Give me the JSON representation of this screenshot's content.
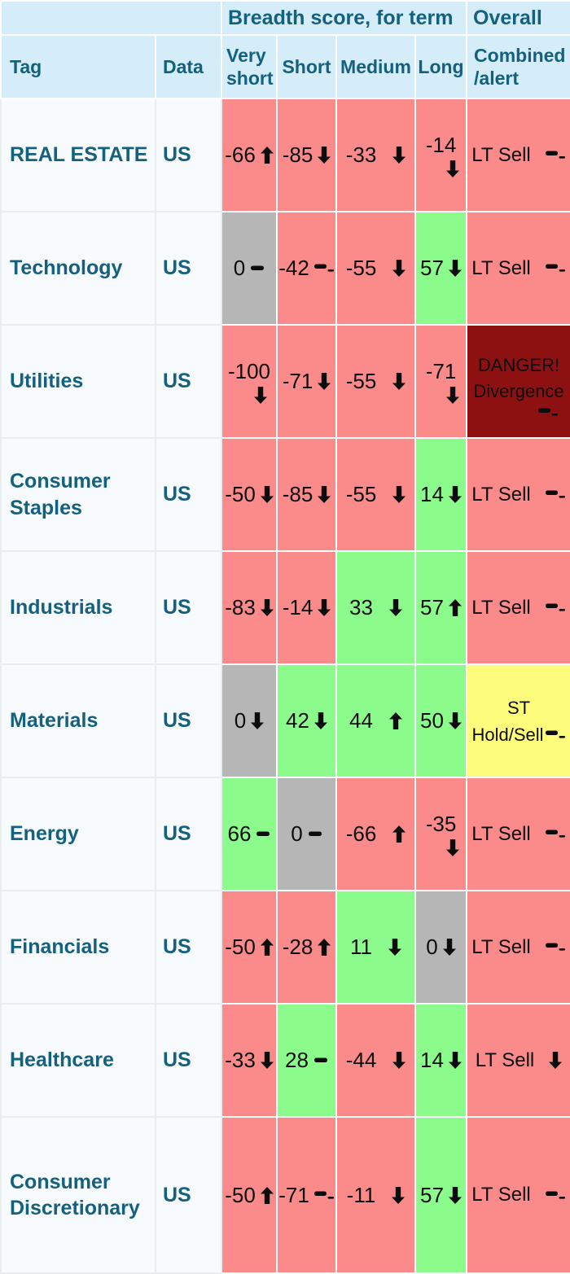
{
  "header": {
    "group_breadth": "Breadth score, for term",
    "group_overall": "Overall",
    "columns": [
      "Tag",
      "Data",
      "Very short",
      "Short",
      "Medium",
      "Long",
      "Combined /alert"
    ]
  },
  "colors": {
    "red": "#fb8a8a",
    "green": "#8bfb8b",
    "gray": "#b6b6b6",
    "dark_red": "#8e1111",
    "yellow": "#fdfd7b",
    "header_bg": "#d5edf8",
    "label_bg": "#f8fbfe",
    "teal_text": "#14607f",
    "number_text": "#0c0c0c"
  },
  "icons": {
    "up": "arrow-up-icon",
    "down": "arrow-down-icon",
    "flat": "dash-icon",
    "flat_minus": "dash-minus-icon"
  },
  "rows": [
    {
      "tag": "REAL ESTATE",
      "data": "US",
      "scores": [
        {
          "value": "-66",
          "trend": "up",
          "color": "red"
        },
        {
          "value": "-85",
          "trend": "down",
          "color": "red"
        },
        {
          "value": "-33",
          "trend": "down",
          "color": "red"
        },
        {
          "value": "-14",
          "trend": "down",
          "color": "red",
          "stack": true
        }
      ],
      "overall": {
        "variant": "lt",
        "lines": [
          "LT Sell"
        ],
        "trend": "flat_minus",
        "color": "red"
      }
    },
    {
      "tag": "Technology",
      "data": "US",
      "scores": [
        {
          "value": "0",
          "trend": "flat",
          "color": "gray"
        },
        {
          "value": "-42",
          "trend": "flat_minus",
          "color": "red"
        },
        {
          "value": "-55",
          "trend": "down",
          "color": "red"
        },
        {
          "value": "57",
          "trend": "down",
          "color": "green"
        }
      ],
      "overall": {
        "variant": "lt",
        "lines": [
          "LT Sell"
        ],
        "trend": "flat_minus",
        "color": "red"
      }
    },
    {
      "tag": "Utilities",
      "data": "US",
      "scores": [
        {
          "value": "-100",
          "trend": "down",
          "color": "red",
          "stack": true
        },
        {
          "value": "-71",
          "trend": "down",
          "color": "red"
        },
        {
          "value": "-55",
          "trend": "down",
          "color": "red"
        },
        {
          "value": "-71",
          "trend": "down",
          "color": "red",
          "stack": true
        }
      ],
      "overall": {
        "variant": "danger",
        "lines": [
          "DANGER!",
          "Divergence"
        ],
        "trend": "flat_minus",
        "color": "dark_red"
      }
    },
    {
      "tag": "Consumer Staples",
      "data": "US",
      "scores": [
        {
          "value": "-50",
          "trend": "down",
          "color": "red"
        },
        {
          "value": "-85",
          "trend": "down",
          "color": "red"
        },
        {
          "value": "-55",
          "trend": "down",
          "color": "red"
        },
        {
          "value": "14",
          "trend": "down",
          "color": "green"
        }
      ],
      "overall": {
        "variant": "lt",
        "lines": [
          "LT Sell"
        ],
        "trend": "flat_minus",
        "color": "red"
      }
    },
    {
      "tag": "Industrials",
      "data": "US",
      "scores": [
        {
          "value": "-83",
          "trend": "down",
          "color": "red"
        },
        {
          "value": "-14",
          "trend": "down",
          "color": "red"
        },
        {
          "value": "33",
          "trend": "down",
          "color": "green"
        },
        {
          "value": "57",
          "trend": "up",
          "color": "green"
        }
      ],
      "overall": {
        "variant": "lt",
        "lines": [
          "LT Sell"
        ],
        "trend": "flat_minus",
        "color": "red"
      }
    },
    {
      "tag": "Materials",
      "data": "US",
      "scores": [
        {
          "value": "0",
          "trend": "down",
          "color": "gray"
        },
        {
          "value": "42",
          "trend": "down",
          "color": "green"
        },
        {
          "value": "44",
          "trend": "up",
          "color": "green"
        },
        {
          "value": "50",
          "trend": "down",
          "color": "green"
        }
      ],
      "overall": {
        "variant": "st",
        "lines": [
          "ST",
          "Hold/Sell"
        ],
        "trend": "flat_minus",
        "color": "yellow"
      }
    },
    {
      "tag": "Energy",
      "data": "US",
      "scores": [
        {
          "value": "66",
          "trend": "flat",
          "color": "green"
        },
        {
          "value": "0",
          "trend": "flat",
          "color": "gray"
        },
        {
          "value": "-66",
          "trend": "up",
          "color": "red"
        },
        {
          "value": "-35",
          "trend": "down",
          "color": "red",
          "stack": true
        }
      ],
      "overall": {
        "variant": "lt",
        "lines": [
          "LT Sell"
        ],
        "trend": "flat_minus",
        "color": "red"
      }
    },
    {
      "tag": "Financials",
      "data": "US",
      "scores": [
        {
          "value": "-50",
          "trend": "up",
          "color": "red"
        },
        {
          "value": "-28",
          "trend": "up",
          "color": "red"
        },
        {
          "value": "11",
          "trend": "down",
          "color": "green"
        },
        {
          "value": "0",
          "trend": "down",
          "color": "gray"
        }
      ],
      "overall": {
        "variant": "lt",
        "lines": [
          "LT Sell"
        ],
        "trend": "flat_minus",
        "color": "red"
      }
    },
    {
      "tag": "Healthcare",
      "data": "US",
      "scores": [
        {
          "value": "-33",
          "trend": "down",
          "color": "red"
        },
        {
          "value": "28",
          "trend": "flat",
          "color": "green"
        },
        {
          "value": "-44",
          "trend": "down",
          "color": "red"
        },
        {
          "value": "14",
          "trend": "down",
          "color": "green"
        }
      ],
      "overall": {
        "variant": "lt",
        "lines": [
          "LT Sell"
        ],
        "trend": "down",
        "color": "red"
      }
    },
    {
      "tag": "Consumer Discretionary",
      "data": "US",
      "scores": [
        {
          "value": "-50",
          "trend": "up",
          "color": "red"
        },
        {
          "value": "-71",
          "trend": "flat_minus",
          "color": "red"
        },
        {
          "value": "-11",
          "trend": "down",
          "color": "red"
        },
        {
          "value": "57",
          "trend": "down",
          "color": "green"
        }
      ],
      "overall": {
        "variant": "lt",
        "lines": [
          "LT Sell"
        ],
        "trend": "flat_minus",
        "color": "red"
      }
    }
  ]
}
